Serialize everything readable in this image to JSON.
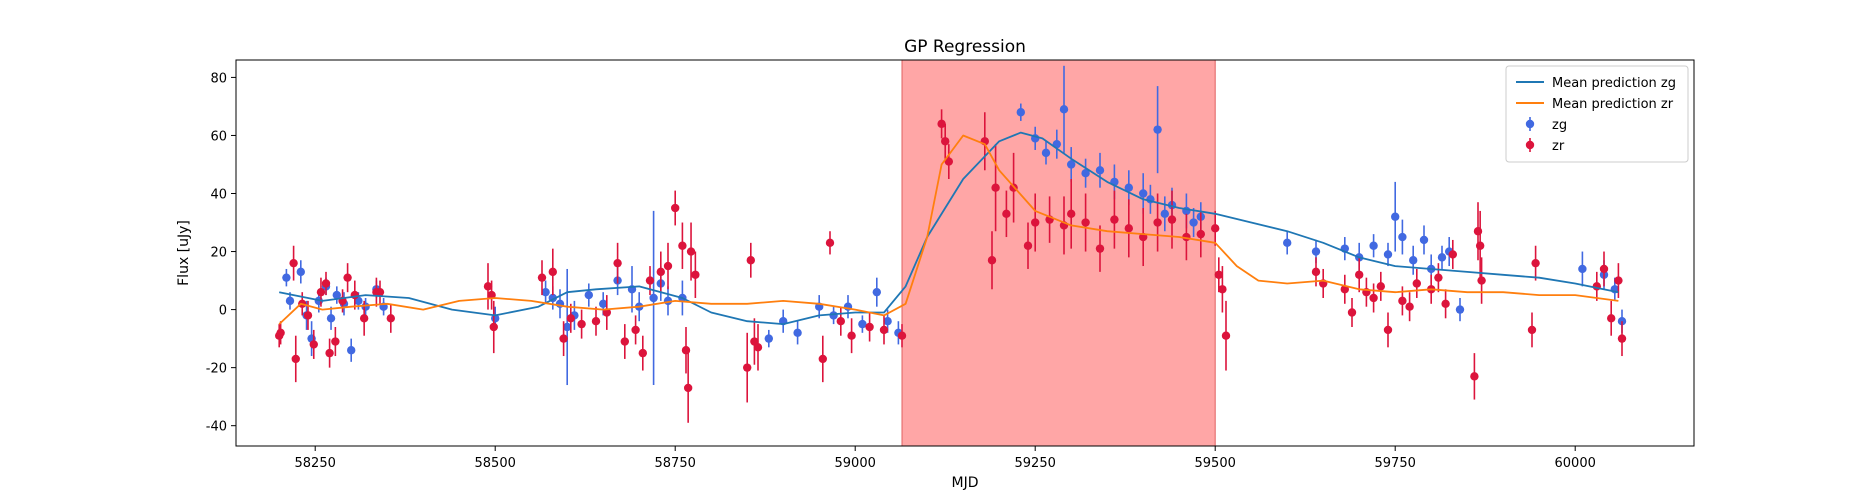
{
  "chart_data": {
    "type": "scatter",
    "title": "GP Regression",
    "xlabel": "MJD",
    "ylabel": "Flux [uJy]",
    "xlim": [
      58140,
      60165
    ],
    "ylim": [
      -47,
      86
    ],
    "xticks": [
      58250,
      58500,
      58750,
      59000,
      59250,
      59500,
      59750,
      60000
    ],
    "yticks": [
      -40,
      -20,
      0,
      20,
      40,
      60,
      80
    ],
    "grid": false,
    "legend_position": "top-right",
    "shaded_region": {
      "x_start": 59065,
      "x_end": 59500,
      "color": "#ff9c9c"
    },
    "series": [
      {
        "name": "Mean prediction zg",
        "kind": "line",
        "color": "#1f77b4",
        "x": [
          58200,
          58260,
          58320,
          58380,
          58440,
          58500,
          58560,
          58600,
          58640,
          58700,
          58760,
          58800,
          58850,
          58900,
          58950,
          59000,
          59040,
          59070,
          59100,
          59150,
          59200,
          59230,
          59260,
          59300,
          59350,
          59400,
          59450,
          59500,
          59550,
          59600,
          59650,
          59700,
          59750,
          59800,
          59850,
          59900,
          59950,
          60000,
          60060
        ],
        "y": [
          6,
          3,
          5,
          4,
          0,
          -2,
          1,
          6,
          7,
          8,
          4,
          -1,
          -4,
          -5,
          -2,
          -1,
          -1,
          8,
          25,
          45,
          58,
          61,
          59,
          52,
          44,
          38,
          35,
          33,
          30,
          27,
          23,
          18,
          15,
          14,
          13,
          12,
          11,
          9,
          6
        ]
      },
      {
        "name": "Mean prediction zr",
        "kind": "line",
        "color": "#ff7f0e",
        "x": [
          58200,
          58230,
          58260,
          58300,
          58350,
          58400,
          58450,
          58500,
          58550,
          58600,
          58650,
          58700,
          58750,
          58800,
          58850,
          58900,
          58950,
          59000,
          59040,
          59070,
          59100,
          59120,
          59150,
          59180,
          59200,
          59250,
          59300,
          59350,
          59400,
          59450,
          59500,
          59530,
          59560,
          59600,
          59650,
          59700,
          59750,
          59800,
          59850,
          59900,
          59950,
          60000,
          60060
        ],
        "y": [
          -5,
          2,
          0,
          1,
          2,
          0,
          3,
          4,
          3,
          1,
          0,
          1,
          3,
          2,
          2,
          3,
          2,
          0,
          -2,
          2,
          25,
          50,
          60,
          57,
          48,
          34,
          29,
          27,
          26,
          25,
          23,
          15,
          10,
          9,
          10,
          7,
          6,
          7,
          6,
          6,
          5,
          5,
          3
        ]
      },
      {
        "name": "zg",
        "kind": "errorbar",
        "color": "#4169e1",
        "points": [
          [
            58210,
            11,
            3
          ],
          [
            58215,
            3,
            3
          ],
          [
            58230,
            13,
            4
          ],
          [
            58238,
            -2,
            5
          ],
          [
            58245,
            -10,
            6
          ],
          [
            58255,
            3,
            4
          ],
          [
            58265,
            8,
            3
          ],
          [
            58272,
            -3,
            4
          ],
          [
            58280,
            5,
            3
          ],
          [
            58290,
            2,
            4
          ],
          [
            58300,
            -14,
            4
          ],
          [
            58310,
            3,
            3
          ],
          [
            58320,
            1,
            3
          ],
          [
            58335,
            7,
            3
          ],
          [
            58345,
            1,
            3
          ],
          [
            58500,
            -3,
            4
          ],
          [
            58570,
            6,
            4
          ],
          [
            58580,
            4,
            4
          ],
          [
            58590,
            2,
            5
          ],
          [
            58600,
            -6,
            20
          ],
          [
            58610,
            -2,
            5
          ],
          [
            58630,
            5,
            4
          ],
          [
            58650,
            2,
            4
          ],
          [
            58670,
            10,
            5
          ],
          [
            58690,
            7,
            8
          ],
          [
            58700,
            1,
            5
          ],
          [
            58720,
            4,
            30
          ],
          [
            58730,
            9,
            6
          ],
          [
            58740,
            3,
            5
          ],
          [
            58760,
            4,
            6
          ],
          [
            58880,
            -10,
            3
          ],
          [
            58900,
            -4,
            4
          ],
          [
            58920,
            -8,
            4
          ],
          [
            58950,
            1,
            4
          ],
          [
            58970,
            -2,
            3
          ],
          [
            58990,
            1,
            4
          ],
          [
            59010,
            -5,
            3
          ],
          [
            59030,
            6,
            5
          ],
          [
            59045,
            -4,
            4
          ],
          [
            59060,
            -8,
            4
          ],
          [
            59230,
            68,
            3
          ],
          [
            59250,
            59,
            4
          ],
          [
            59265,
            54,
            4
          ],
          [
            59280,
            57,
            5
          ],
          [
            59290,
            69,
            15
          ],
          [
            59300,
            50,
            6
          ],
          [
            59320,
            47,
            5
          ],
          [
            59340,
            48,
            6
          ],
          [
            59360,
            44,
            6
          ],
          [
            59380,
            42,
            6
          ],
          [
            59400,
            40,
            7
          ],
          [
            59410,
            38,
            5
          ],
          [
            59420,
            62,
            15
          ],
          [
            59430,
            33,
            6
          ],
          [
            59440,
            36,
            6
          ],
          [
            59460,
            34,
            6
          ],
          [
            59470,
            30,
            5
          ],
          [
            59480,
            32,
            5
          ],
          [
            59600,
            23,
            4
          ],
          [
            59640,
            20,
            4
          ],
          [
            59680,
            21,
            4
          ],
          [
            59700,
            18,
            5
          ],
          [
            59720,
            22,
            4
          ],
          [
            59740,
            19,
            4
          ],
          [
            59750,
            32,
            12
          ],
          [
            59760,
            25,
            6
          ],
          [
            59775,
            17,
            5
          ],
          [
            59790,
            24,
            5
          ],
          [
            59800,
            14,
            5
          ],
          [
            59815,
            18,
            4
          ],
          [
            59825,
            20,
            5
          ],
          [
            59840,
            0,
            4
          ],
          [
            60010,
            14,
            6
          ],
          [
            60040,
            12,
            5
          ],
          [
            60055,
            7,
            4
          ],
          [
            60065,
            -4,
            4
          ]
        ]
      },
      {
        "name": "zr",
        "kind": "errorbar",
        "color": "#dc143c",
        "points": [
          [
            58200,
            -9,
            4
          ],
          [
            58202,
            -8,
            4
          ],
          [
            58220,
            16,
            6
          ],
          [
            58223,
            -17,
            8
          ],
          [
            58232,
            2,
            4
          ],
          [
            58240,
            -2,
            5
          ],
          [
            58248,
            -12,
            5
          ],
          [
            58258,
            6,
            5
          ],
          [
            58265,
            9,
            4
          ],
          [
            58270,
            -15,
            5
          ],
          [
            58278,
            -11,
            5
          ],
          [
            58288,
            3,
            4
          ],
          [
            58295,
            11,
            5
          ],
          [
            58305,
            5,
            5
          ],
          [
            58318,
            -3,
            6
          ],
          [
            58335,
            6,
            5
          ],
          [
            58340,
            6,
            4
          ],
          [
            58355,
            -3,
            5
          ],
          [
            58490,
            8,
            8
          ],
          [
            58495,
            5,
            5
          ],
          [
            58498,
            -6,
            9
          ],
          [
            58565,
            11,
            6
          ],
          [
            58580,
            13,
            8
          ],
          [
            58595,
            -10,
            6
          ],
          [
            58605,
            -3,
            5
          ],
          [
            58620,
            -5,
            5
          ],
          [
            58640,
            -4,
            5
          ],
          [
            58655,
            -1,
            6
          ],
          [
            58670,
            16,
            7
          ],
          [
            58680,
            -11,
            6
          ],
          [
            58695,
            -7,
            5
          ],
          [
            58705,
            -15,
            6
          ],
          [
            58715,
            10,
            5
          ],
          [
            58730,
            13,
            7
          ],
          [
            58740,
            15,
            8
          ],
          [
            58750,
            35,
            6
          ],
          [
            58760,
            22,
            8
          ],
          [
            58765,
            -14,
            8
          ],
          [
            58768,
            -27,
            12
          ],
          [
            58772,
            20,
            10
          ],
          [
            58778,
            12,
            8
          ],
          [
            58850,
            -20,
            12
          ],
          [
            58855,
            17,
            6
          ],
          [
            58860,
            -11,
            8
          ],
          [
            58865,
            -13,
            8
          ],
          [
            58955,
            -17,
            8
          ],
          [
            58965,
            23,
            4
          ],
          [
            58980,
            -4,
            5
          ],
          [
            58995,
            -9,
            6
          ],
          [
            59020,
            -6,
            5
          ],
          [
            59040,
            -7,
            5
          ],
          [
            59065,
            -9,
            4
          ],
          [
            59120,
            64,
            5
          ],
          [
            59125,
            58,
            6
          ],
          [
            59130,
            51,
            6
          ],
          [
            59180,
            58,
            10
          ],
          [
            59190,
            17,
            10
          ],
          [
            59195,
            42,
            15
          ],
          [
            59210,
            33,
            8
          ],
          [
            59220,
            42,
            12
          ],
          [
            59240,
            22,
            8
          ],
          [
            59250,
            30,
            10
          ],
          [
            59270,
            31,
            8
          ],
          [
            59290,
            29,
            10
          ],
          [
            59300,
            33,
            12
          ],
          [
            59320,
            30,
            10
          ],
          [
            59340,
            21,
            8
          ],
          [
            59360,
            31,
            10
          ],
          [
            59380,
            28,
            10
          ],
          [
            59400,
            25,
            10
          ],
          [
            59420,
            30,
            10
          ],
          [
            59440,
            31,
            10
          ],
          [
            59460,
            25,
            8
          ],
          [
            59480,
            26,
            8
          ],
          [
            59500,
            28,
            6
          ],
          [
            59505,
            12,
            6
          ],
          [
            59510,
            7,
            8
          ],
          [
            59515,
            -9,
            12
          ],
          [
            59640,
            13,
            5
          ],
          [
            59650,
            9,
            5
          ],
          [
            59680,
            7,
            5
          ],
          [
            59690,
            -1,
            5
          ],
          [
            59700,
            12,
            6
          ],
          [
            59710,
            6,
            5
          ],
          [
            59720,
            4,
            5
          ],
          [
            59730,
            8,
            5
          ],
          [
            59740,
            -7,
            6
          ],
          [
            59760,
            3,
            5
          ],
          [
            59770,
            1,
            5
          ],
          [
            59780,
            9,
            5
          ],
          [
            59800,
            7,
            5
          ],
          [
            59810,
            11,
            5
          ],
          [
            59820,
            2,
            5
          ],
          [
            59830,
            19,
            5
          ],
          [
            59860,
            -23,
            8
          ],
          [
            59865,
            27,
            10
          ],
          [
            59868,
            22,
            12
          ],
          [
            59870,
            10,
            8
          ],
          [
            59940,
            -7,
            6
          ],
          [
            59945,
            16,
            6
          ],
          [
            60030,
            8,
            5
          ],
          [
            60040,
            14,
            6
          ],
          [
            60050,
            -3,
            6
          ],
          [
            60060,
            10,
            6
          ],
          [
            60065,
            -10,
            6
          ]
        ]
      }
    ]
  }
}
